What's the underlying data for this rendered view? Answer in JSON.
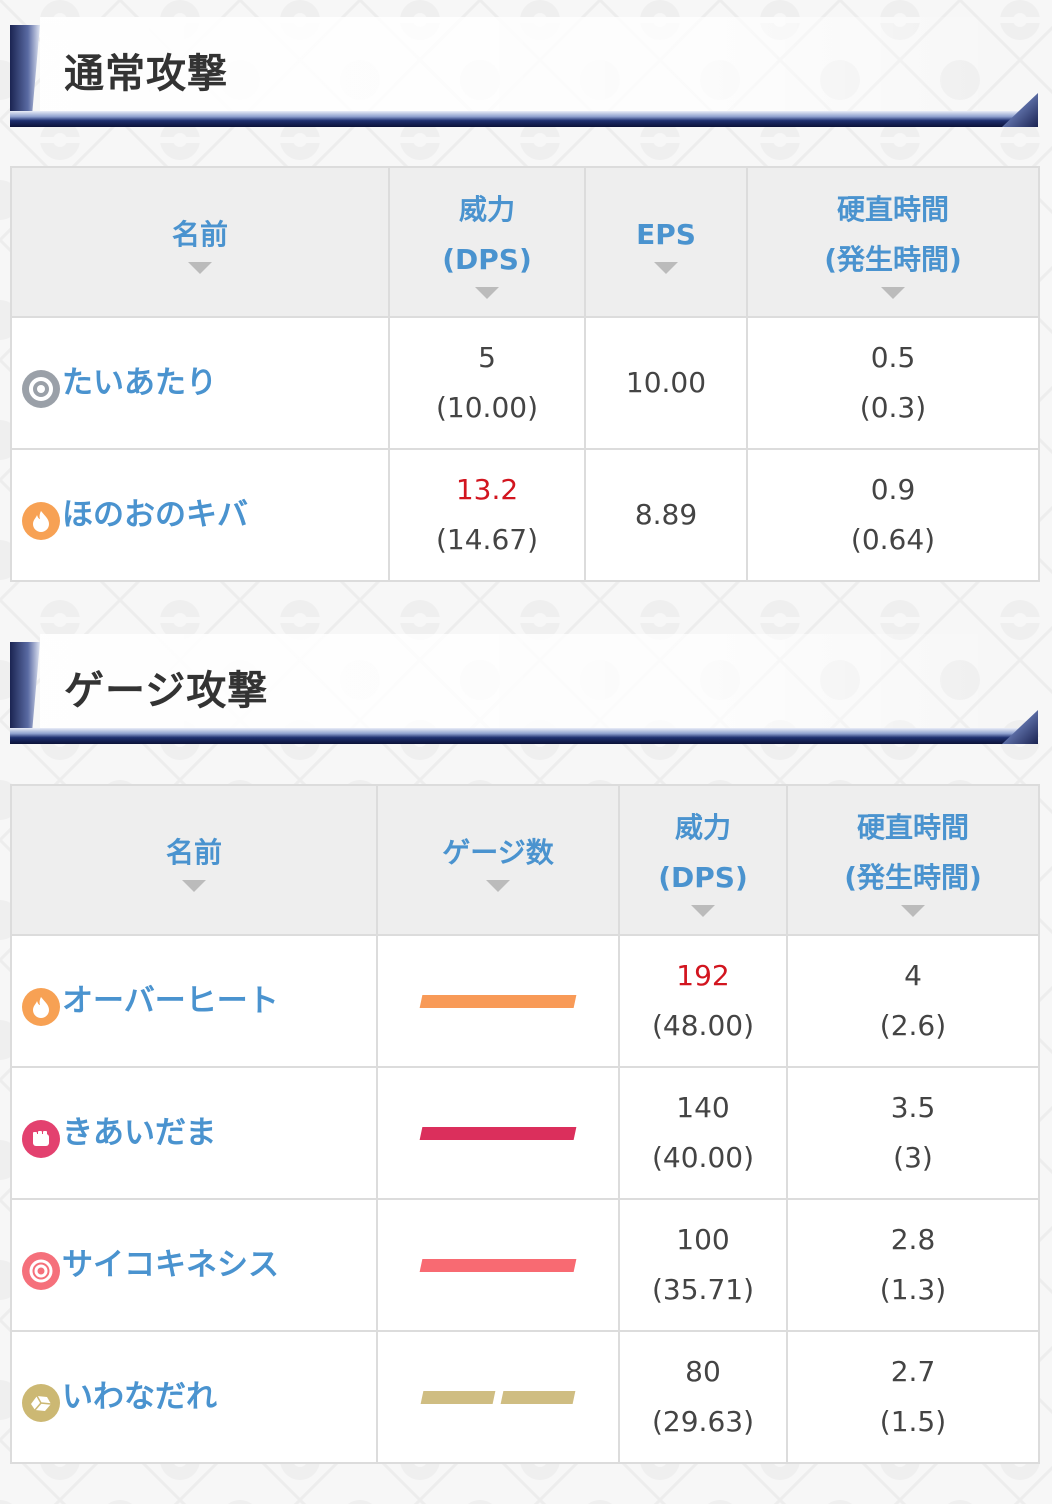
{
  "normal_attacks": {
    "title": "通常攻撃",
    "headers": {
      "name": "名前",
      "power": "威力",
      "power_sub": "(DPS)",
      "eps": "EPS",
      "cooldown": "硬直時間",
      "cooldown_sub": "(発生時間)"
    },
    "rows": [
      {
        "name": "たいあたり",
        "type_icon": "normal-type-icon",
        "type_color": "#9aa0a8",
        "power": "5",
        "dps": "(10.00)",
        "power_highlight": false,
        "eps": "10.00",
        "cooldown": "0.5",
        "startup": "(0.3)"
      },
      {
        "name": "ほのおのキバ",
        "type_icon": "fire-type-icon",
        "type_color": "#f7a154",
        "power": "13.2",
        "dps": "(14.67)",
        "power_highlight": true,
        "eps": "8.89",
        "cooldown": "0.9",
        "startup": "(0.64)"
      }
    ]
  },
  "charged_attacks": {
    "title": "ゲージ攻撃",
    "headers": {
      "name": "名前",
      "gauge": "ゲージ数",
      "power": "威力",
      "power_sub": "(DPS)",
      "cooldown": "硬直時間",
      "cooldown_sub": "(発生時間)"
    },
    "rows": [
      {
        "name": "オーバーヒート",
        "type_icon": "fire-type-icon",
        "type_color": "#f7a154",
        "gauge_segments": 1,
        "gauge_color": "#f89a57",
        "power": "192",
        "dps": "(48.00)",
        "power_highlight": true,
        "cooldown": "4",
        "startup": "(2.6)"
      },
      {
        "name": "きあいだま",
        "type_icon": "fighting-type-icon",
        "type_color": "#e3416f",
        "gauge_segments": 1,
        "gauge_color": "#db2f5c",
        "power": "140",
        "dps": "(40.00)",
        "power_highlight": false,
        "cooldown": "3.5",
        "startup": "(3)"
      },
      {
        "name": "サイコキネシス",
        "type_icon": "psychic-type-icon",
        "type_color": "#f5707b",
        "gauge_segments": 1,
        "gauge_color": "#f86a72",
        "power": "100",
        "dps": "(35.71)",
        "power_highlight": false,
        "cooldown": "2.8",
        "startup": "(1.3)"
      },
      {
        "name": "いわなだれ",
        "type_icon": "rock-type-icon",
        "type_color": "#ccb873",
        "gauge_segments": 2,
        "gauge_color": "#cfbd82",
        "power": "80",
        "dps": "(29.63)",
        "power_highlight": false,
        "cooldown": "2.7",
        "startup": "(1.5)"
      }
    ]
  }
}
